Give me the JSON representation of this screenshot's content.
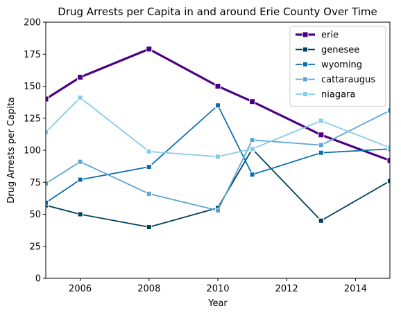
{
  "chart_data": {
    "type": "line",
    "title": "Drug Arrests per Capita in and around Erie County Over Time",
    "xlabel": "Year",
    "ylabel": "Drug Arrests per Capita",
    "xlim": [
      2005,
      2015
    ],
    "ylim": [
      0,
      200
    ],
    "xticks": [
      2006,
      2008,
      2010,
      2012,
      2014
    ],
    "yticks": [
      0,
      25,
      50,
      75,
      100,
      125,
      150,
      175,
      200
    ],
    "grid": false,
    "legend_position": "top-right",
    "series": [
      {
        "name": "erie",
        "color": "#4b0082",
        "emphasis": true,
        "x": [
          2005,
          2006,
          2008,
          2010,
          2011,
          2013,
          2015
        ],
        "y": [
          140,
          157,
          179,
          150,
          138,
          112,
          92
        ]
      },
      {
        "name": "genesee",
        "color": "#003f5c",
        "emphasis": false,
        "x": [
          2005,
          2006,
          2008,
          2010,
          2011,
          2013,
          2015
        ],
        "y": [
          57,
          50,
          40,
          55,
          101,
          45,
          76
        ]
      },
      {
        "name": "wyoming",
        "color": "#0b6fad",
        "emphasis": false,
        "x": [
          2005,
          2006,
          2008,
          2010,
          2011,
          2013,
          2015
        ],
        "y": [
          59,
          77,
          87,
          135,
          81,
          98,
          101
        ]
      },
      {
        "name": "cattaraugus",
        "color": "#5aa5d6",
        "emphasis": false,
        "x": [
          2005,
          2006,
          2008,
          2010,
          2011,
          2013,
          2015
        ],
        "y": [
          74,
          91,
          66,
          53,
          108,
          104,
          131
        ]
      },
      {
        "name": "niagara",
        "color": "#86cbe8",
        "emphasis": false,
        "x": [
          2005,
          2006,
          2008,
          2010,
          2011,
          2013,
          2015
        ],
        "y": [
          114,
          141,
          99,
          95,
          101,
          123,
          102
        ]
      }
    ]
  }
}
